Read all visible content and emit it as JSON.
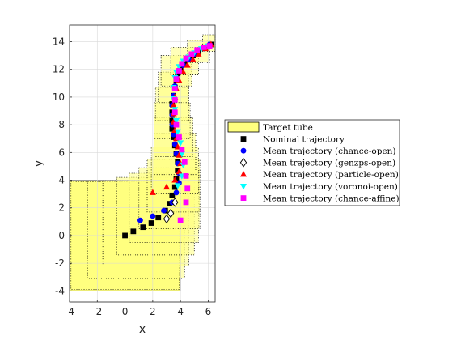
{
  "chart_data": {
    "type": "scatter",
    "xlabel": "x",
    "ylabel": "y",
    "xlim": [
      -4,
      6.5
    ],
    "ylim": [
      -4.8,
      15.2
    ],
    "xticks": [
      -4,
      -2,
      0,
      2,
      4,
      6
    ],
    "yticks": [
      -4,
      -2,
      0,
      2,
      4,
      6,
      8,
      10,
      12,
      14
    ],
    "grid": true,
    "legend_position": "right",
    "legend": [
      "Target tube",
      "Nominal trajectory",
      "Mean trajectory (chance-open)",
      "Mean trajectory (genzps-open)",
      "Mean trajectory (particle-open)",
      "Mean trajectory (voronoi-open)",
      "Mean trajectory (chance-affine)"
    ],
    "target_tube": {
      "initial_box": {
        "x": [
          -4,
          4
        ],
        "y": [
          -4,
          4
        ]
      },
      "series_color": "#ffff7f",
      "centers": [
        [
          0,
          0
        ],
        [
          0.8,
          0.4
        ],
        [
          1.5,
          0.9
        ],
        [
          2.2,
          1.4
        ],
        [
          2.8,
          2.0
        ],
        [
          3.2,
          2.7
        ],
        [
          3.5,
          3.6
        ],
        [
          3.6,
          4.7
        ],
        [
          3.6,
          5.9
        ],
        [
          3.5,
          7.1
        ],
        [
          3.4,
          8.3
        ],
        [
          3.4,
          9.5
        ],
        [
          3.5,
          10.7
        ],
        [
          3.7,
          11.9
        ],
        [
          4.3,
          12.6
        ],
        [
          5.3,
          13.3
        ],
        [
          6.2,
          13.9
        ]
      ],
      "half_widths": [
        3.9,
        3.5,
        3.1,
        2.8,
        2.5,
        2.2,
        1.9,
        1.7,
        1.5,
        1.4,
        1.3,
        1.2,
        1.1,
        1.1,
        1.0,
        0.8,
        0.6
      ]
    },
    "series": [
      {
        "name": "Nominal trajectory",
        "marker": "square",
        "color": "#000000",
        "x": [
          0.0,
          0.6,
          1.3,
          1.9,
          2.4,
          2.9,
          3.2,
          3.4,
          3.6,
          3.7,
          3.8,
          3.8,
          3.7,
          3.6,
          3.5,
          3.4,
          3.4,
          3.4,
          3.4,
          3.5,
          3.6,
          3.7,
          3.8,
          4.0,
          4.3,
          4.6,
          4.9,
          5.3,
          5.8,
          6.2
        ],
        "y": [
          0.0,
          0.3,
          0.6,
          0.9,
          1.3,
          1.8,
          2.3,
          2.9,
          3.5,
          4.1,
          4.7,
          5.3,
          5.9,
          6.5,
          7.1,
          7.7,
          8.3,
          8.9,
          9.5,
          10.1,
          10.7,
          11.2,
          11.7,
          12.1,
          12.4,
          12.7,
          13.0,
          13.3,
          13.6,
          13.8
        ]
      },
      {
        "name": "Mean trajectory (chance-open)",
        "marker": "circle",
        "color": "#0000ff",
        "x": [
          1.1,
          2.0,
          2.8,
          3.4,
          3.7,
          3.9,
          3.9,
          3.8,
          3.7,
          3.6,
          3.5,
          3.4,
          3.4,
          3.4,
          3.5,
          3.6,
          3.7,
          3.9,
          4.2,
          4.6,
          5.1,
          5.7,
          6.1
        ],
        "y": [
          1.1,
          1.4,
          1.8,
          2.4,
          3.1,
          3.8,
          4.5,
          5.2,
          5.9,
          6.6,
          7.3,
          8.0,
          8.7,
          9.4,
          10.1,
          10.8,
          11.4,
          11.9,
          12.3,
          12.7,
          13.1,
          13.5,
          13.8
        ]
      },
      {
        "name": "Mean trajectory (genzps-open)",
        "marker": "diamond",
        "color": "#000000",
        "x": [
          3.0,
          3.3,
          3.6
        ],
        "y": [
          1.2,
          1.6,
          2.4
        ]
      },
      {
        "name": "Mean trajectory (particle-open)",
        "marker": "triangle",
        "color": "#ff0000",
        "x": [
          2.0,
          3.0,
          3.6,
          3.9,
          4.0,
          3.9,
          3.8,
          3.7,
          3.6,
          3.5,
          3.5,
          3.5,
          3.6,
          3.7,
          3.9,
          4.2,
          4.5,
          4.9,
          5.3,
          5.8,
          6.2
        ],
        "y": [
          3.1,
          3.5,
          4.0,
          4.6,
          5.2,
          5.8,
          6.4,
          7.0,
          7.6,
          8.2,
          8.8,
          9.4,
          10.0,
          10.6,
          11.2,
          11.8,
          12.3,
          12.7,
          13.1,
          13.5,
          13.8
        ]
      },
      {
        "name": "Mean trajectory (voronoi-open)",
        "marker": "triangle-down",
        "color": "#00ffff",
        "x": [
          3.8,
          4.1,
          4.2,
          4.1,
          4.0,
          3.8,
          3.7,
          3.6,
          3.5,
          3.5,
          3.6,
          3.7,
          3.9,
          4.2,
          4.6,
          5.0,
          5.5,
          6.0
        ],
        "y": [
          3.6,
          4.3,
          5.1,
          5.9,
          6.7,
          7.5,
          8.3,
          9.1,
          9.9,
          10.7,
          11.4,
          11.8,
          12.2,
          12.6,
          12.9,
          13.2,
          13.5,
          13.7
        ]
      },
      {
        "name": "Mean trajectory (chance-affine)",
        "marker": "square",
        "color": "#ff00ff",
        "x": [
          4.0,
          4.4,
          4.5,
          4.4,
          4.3,
          4.1,
          3.9,
          3.7,
          3.6,
          3.6,
          3.6,
          3.7,
          3.9,
          4.1,
          4.4,
          4.8,
          5.2,
          5.7,
          6.1
        ],
        "y": [
          1.1,
          2.4,
          3.4,
          4.3,
          5.3,
          6.2,
          7.1,
          8.0,
          8.9,
          9.8,
          10.6,
          11.3,
          11.9,
          12.4,
          12.8,
          13.1,
          13.4,
          13.6,
          13.7
        ]
      }
    ]
  }
}
